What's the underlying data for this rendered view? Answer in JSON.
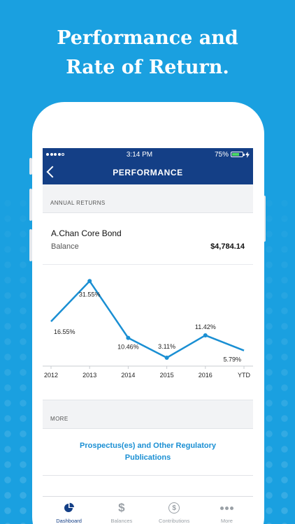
{
  "promo": {
    "line1": "Performance and",
    "line2": "Rate of Return."
  },
  "status_bar": {
    "time": "3:14 PM",
    "battery": "75%"
  },
  "navbar": {
    "title": "PERFORMANCE"
  },
  "annual_returns": {
    "header": "ANNUAL RETURNS",
    "fund_name": "A.Chan Core Bond",
    "balance_label": "Balance",
    "balance_value": "$4,784.14"
  },
  "chart_data": {
    "type": "line",
    "categories": [
      "2012",
      "2013",
      "2014",
      "2015",
      "2016",
      "YTD"
    ],
    "series": [
      {
        "values": [
          16.55,
          31.55,
          10.46,
          3.11,
          11.42,
          5.79
        ]
      }
    ],
    "point_labels": [
      "16.55%",
      "31.55%",
      "10.46%",
      "3.11%",
      "11.42%",
      "5.79%"
    ],
    "xlabel": "",
    "ylabel": "",
    "ylim": [
      0,
      35
    ],
    "color": "#1a8fd3",
    "grid": false
  },
  "more": {
    "header": "MORE",
    "link": "Prospectus(es) and Other Regulatory Publications"
  },
  "tabbar": {
    "tabs": [
      {
        "label": "Dashboard",
        "icon": "pie-chart-icon",
        "active": true
      },
      {
        "label": "Balances",
        "icon": "dollar-icon",
        "active": false
      },
      {
        "label": "Contributions",
        "icon": "dollar-coin-icon",
        "active": false
      },
      {
        "label": "More",
        "icon": "more-dots-icon",
        "active": false
      }
    ]
  },
  "colors": {
    "background": "#1aa0e0",
    "navbar": "#143f86",
    "accent": "#1a8fd3"
  }
}
